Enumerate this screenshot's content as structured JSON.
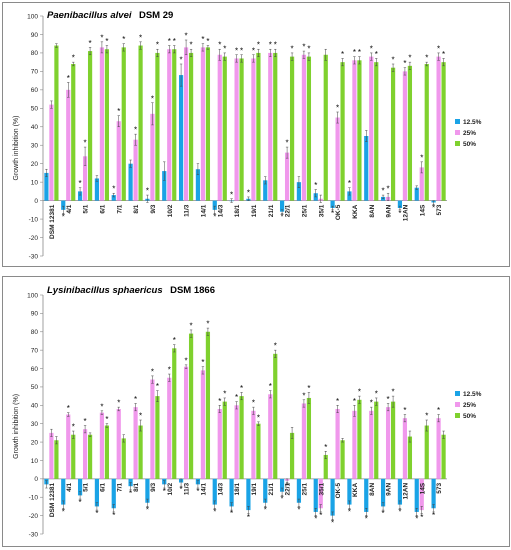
{
  "chart_data": [
    {
      "type": "bar",
      "title_species": "Paenibacillus alvei",
      "title_strain": "DSM 29",
      "ylabel": "Growth inhibition (%)",
      "ylim": [
        -30,
        100
      ],
      "yticks": [
        -30,
        -20,
        -10,
        0,
        10,
        20,
        30,
        40,
        50,
        60,
        70,
        80,
        90,
        100
      ],
      "grid": false,
      "legend_position": "right",
      "categories": [
        "DSM 12381",
        "4/1",
        "5/1",
        "6/1",
        "7/1",
        "8/1",
        "9/3",
        "10/2",
        "11/3",
        "14/1",
        "14/3",
        "18/1",
        "19/1",
        "21/1",
        "22/1",
        "25/1",
        "35/1",
        "OK-5",
        "KKA",
        "8AN",
        "9AN",
        "12AN",
        "14S",
        "573"
      ],
      "series": [
        {
          "name": "12.5%",
          "color": "#1aa3e6",
          "values": [
            15,
            -5,
            5,
            12,
            3,
            20,
            1,
            16,
            68,
            17,
            -5,
            0,
            1,
            11,
            -6,
            10,
            4,
            -4,
            5,
            35,
            2,
            -4,
            7,
            -1
          ],
          "errors": [
            2,
            2,
            2,
            1.5,
            1,
            2,
            2,
            5,
            6,
            3,
            2,
            1,
            1,
            2,
            1,
            3,
            2,
            1,
            2,
            3,
            1,
            1,
            1,
            1
          ],
          "stars": [
            false,
            true,
            true,
            false,
            true,
            false,
            true,
            false,
            true,
            false,
            true,
            true,
            true,
            false,
            true,
            false,
            true,
            true,
            true,
            false,
            true,
            true,
            false,
            true
          ]
        },
        {
          "name": "25%",
          "color": "#f098ec",
          "values": [
            52,
            60,
            24,
            83,
            43,
            33,
            47,
            82,
            83,
            83,
            79,
            77,
            77,
            80,
            26,
            79,
            1,
            45,
            76,
            78,
            2,
            70,
            18,
            78
          ],
          "errors": [
            2,
            4,
            5,
            3,
            3,
            3,
            6,
            2,
            4,
            2,
            3,
            2,
            2,
            2,
            3,
            2,
            2,
            3,
            2,
            2,
            2,
            2,
            3,
            2
          ],
          "stars": [
            false,
            true,
            true,
            true,
            true,
            true,
            true,
            true,
            true,
            true,
            true,
            true,
            true,
            true,
            true,
            true,
            false,
            true,
            true,
            true,
            true,
            true,
            true,
            true
          ]
        },
        {
          "name": "50%",
          "color": "#7fd12e",
          "values": [
            84,
            74,
            81,
            82,
            83,
            84,
            80,
            82,
            80,
            83,
            78,
            77,
            80,
            80,
            78,
            78,
            79,
            75,
            76,
            75,
            72,
            73,
            74,
            75
          ],
          "errors": [
            1,
            1,
            2,
            2,
            2,
            2,
            2,
            2,
            2,
            1,
            2,
            2,
            2,
            2,
            2,
            2,
            3,
            2,
            2,
            2,
            2,
            2,
            1,
            2
          ],
          "stars": [
            false,
            true,
            true,
            true,
            true,
            true,
            true,
            true,
            true,
            true,
            true,
            true,
            true,
            true,
            true,
            true,
            false,
            true,
            true,
            true,
            true,
            true,
            true,
            true
          ]
        }
      ]
    },
    {
      "type": "bar",
      "title_species": "Lysinibacillus sphaericus",
      "title_strain": "DSM 1866",
      "ylabel": "Growth inhibition (%)",
      "ylim": [
        -30,
        100
      ],
      "yticks": [
        -30,
        -20,
        -10,
        0,
        10,
        20,
        30,
        40,
        50,
        60,
        70,
        80,
        90,
        100
      ],
      "grid": false,
      "legend_position": "right",
      "categories": [
        "DSM 12381",
        "4/1",
        "5/1",
        "6/1",
        "7/1",
        "8/1",
        "9/3",
        "10/2",
        "11/3",
        "14/1",
        "14/3",
        "18/1",
        "19/1",
        "21/1",
        "22/1",
        "25/1",
        "35/1",
        "OK-5",
        "KKA",
        "8AN",
        "9AN",
        "12AN",
        "14S",
        "573"
      ],
      "series": [
        {
          "name": "12.5%",
          "color": "#1aa3e6",
          "values": [
            -3,
            -14,
            -9,
            -15,
            -16,
            -4,
            -13,
            -3,
            -2,
            -3,
            -14,
            -15,
            -17,
            -13,
            -7,
            -13,
            -18,
            -20,
            -14,
            -18,
            -15,
            -14,
            -18,
            -16
          ],
          "errors": [
            2,
            2,
            2,
            2,
            2,
            2,
            2,
            2,
            2,
            2,
            2,
            2,
            2,
            2,
            2,
            2,
            2,
            2,
            2,
            2,
            2,
            2,
            2,
            2
          ],
          "stars": [
            false,
            true,
            true,
            true,
            true,
            true,
            true,
            true,
            true,
            true,
            true,
            true,
            true,
            true,
            true,
            true,
            true,
            true,
            true,
            true,
            true,
            true,
            true,
            true
          ]
        },
        {
          "name": "25%",
          "color": "#f098ec",
          "values": [
            25,
            35,
            27,
            36,
            38,
            39,
            54,
            55,
            61,
            59,
            38,
            40,
            37,
            46,
            -1,
            41,
            -16,
            38,
            37,
            37,
            39,
            33,
            -17,
            33
          ],
          "errors": [
            2,
            1,
            2,
            1,
            1,
            2,
            2,
            2,
            1,
            2,
            2,
            2,
            2,
            2,
            1,
            2,
            2,
            2,
            3,
            2,
            2,
            2,
            2,
            2
          ],
          "stars": [
            false,
            true,
            true,
            true,
            true,
            true,
            true,
            true,
            true,
            true,
            true,
            true,
            true,
            true,
            true,
            true,
            true,
            true,
            true,
            true,
            true,
            true,
            true,
            true
          ]
        },
        {
          "name": "50%",
          "color": "#7fd12e",
          "values": [
            21,
            24,
            24,
            29,
            22,
            29,
            45,
            71,
            79,
            80,
            42,
            45,
            30,
            68,
            25,
            44,
            13,
            21,
            43,
            42,
            42,
            23,
            29,
            24
          ],
          "errors": [
            2,
            2,
            1,
            1,
            2,
            3,
            3,
            2,
            2,
            2,
            2,
            2,
            1,
            2,
            3,
            3,
            2,
            1,
            2,
            2,
            3,
            3,
            3,
            2
          ],
          "stars": [
            false,
            true,
            false,
            true,
            false,
            true,
            true,
            true,
            true,
            true,
            true,
            true,
            true,
            true,
            false,
            true,
            true,
            false,
            true,
            true,
            true,
            false,
            true,
            false
          ]
        }
      ]
    }
  ]
}
